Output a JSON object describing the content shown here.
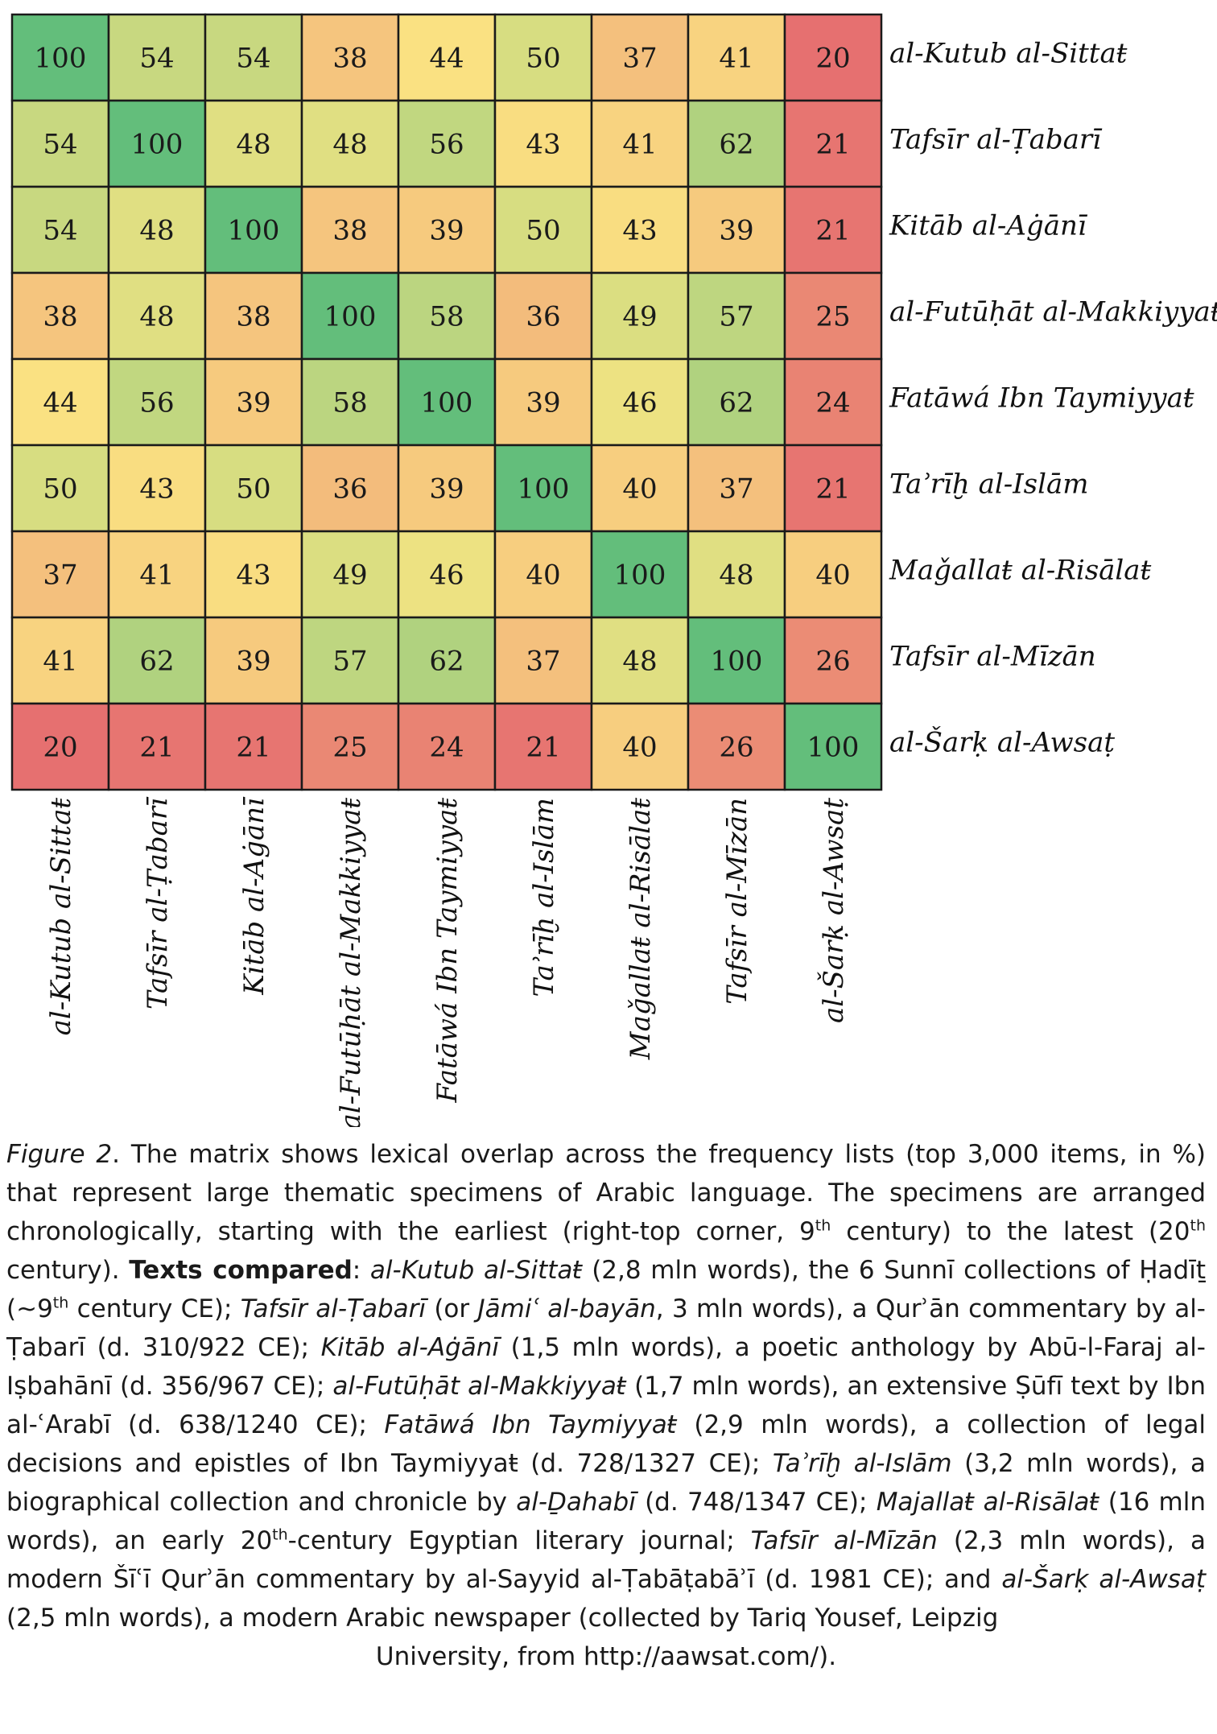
{
  "chart_data": {
    "type": "heatmap",
    "labels": [
      "al-Kutub al-Sittaŧ",
      "Tafsīr al-Ṭabarī",
      "Kitāb al-Aġānī",
      "al-Futūḥāt al-Makkiyyaŧ",
      "Fatāwá Ibn Taymiyyaŧ",
      "Taʾrīḫ al-Islām",
      "Maǧallaŧ al-Risālaŧ",
      "Tafsīr al-Mīzān",
      "al-Šarḳ al-Awsaṭ"
    ],
    "matrix": [
      [
        100,
        54,
        54,
        38,
        44,
        50,
        37,
        41,
        20
      ],
      [
        54,
        100,
        48,
        48,
        56,
        43,
        41,
        62,
        21
      ],
      [
        54,
        48,
        100,
        38,
        39,
        50,
        43,
        39,
        21
      ],
      [
        38,
        48,
        38,
        100,
        58,
        36,
        49,
        57,
        25
      ],
      [
        44,
        56,
        39,
        58,
        100,
        39,
        46,
        62,
        24
      ],
      [
        50,
        43,
        50,
        36,
        39,
        100,
        40,
        37,
        21
      ],
      [
        37,
        41,
        43,
        49,
        46,
        40,
        100,
        48,
        40
      ],
      [
        41,
        62,
        39,
        57,
        62,
        37,
        48,
        100,
        26
      ],
      [
        20,
        21,
        21,
        25,
        24,
        21,
        40,
        26,
        100
      ]
    ],
    "color_scale": {
      "high": "#63be7b",
      "mid": "#fbe683",
      "low": "#e67070"
    }
  },
  "caption": {
    "fig_label": "Figure 2",
    "p1": ". The matrix shows lexical overlap across the frequency lists (top 3,000 items, in  %) that represent large thematic specimens of Arabic language. The specimens are arranged chronologically, starting with the earliest (right-top corner, 9",
    "sup_th1": "th",
    "p2": " century) to the latest (20",
    "sup_th2": "th",
    "p3": " century). ",
    "bold_label": "Texts compared",
    "p4": ": ",
    "t1": "al-Kutub al-Sittaŧ",
    "d1": " (2,8 mln words), the 6 Sunnī collections of Ḥadīṯ (~9",
    "sup_th3": "th",
    "d1b": " century CE); ",
    "t2": "Tafsīr al-Ṭabarī",
    "d2a": " (or ",
    "t2b": "Jāmiʿ al-bayān",
    "d2b": ", 3 mln words), a Qurʾān commentary by al-Ṭabarī (d. 310/922 CE); ",
    "t3": "Kitāb al-Aġānī",
    "d3": " (1,5 mln words), a poetic anthology by Abū-l-Faraj al-Iṣbahānī (d. 356/967 CE); ",
    "t4": "al-Futūḥāt al-Makkiyyaŧ",
    "d4": " (1,7 mln words), an extensive Ṣūfī text by Ibn al-ʿArabī (d. 638/1240 CE); ",
    "t5": "Fatāwá Ibn Taymiyyaŧ",
    "d5": " (2,9 mln words), a collection of legal decisions and epistles of Ibn Taymiyyaŧ (d. 728/1327 CE); ",
    "t6": "Taʾrīḫ al-Islām",
    "d6a": " (3,2 mln words), a biographical collection and chronicle by ",
    "t6b": "al-Ḏahabī",
    "d6b": " (d. 748/1347 CE); ",
    "t7": "Majallaŧ al-Risālaŧ",
    "d7a": " (16 mln words), an early 20",
    "sup_th4": "th",
    "d7b": "-century Egyptian literary journal; ",
    "t8": "Tafsīr al-Mīzān",
    "d8": " (2,3 mln words), a modern Šīʿī Qurʾān commentary by al-Sayyid al-Ṭabāṭabāʾī (d. 1981 CE); and ",
    "t9": "al-Šarḳ al-Awsaṭ",
    "d9": " (2,5 mln words), a modern Arabic newspaper (collected by Tariq Yousef, Leipzig",
    "last_line": "University, from http://aawsat.com/)."
  }
}
